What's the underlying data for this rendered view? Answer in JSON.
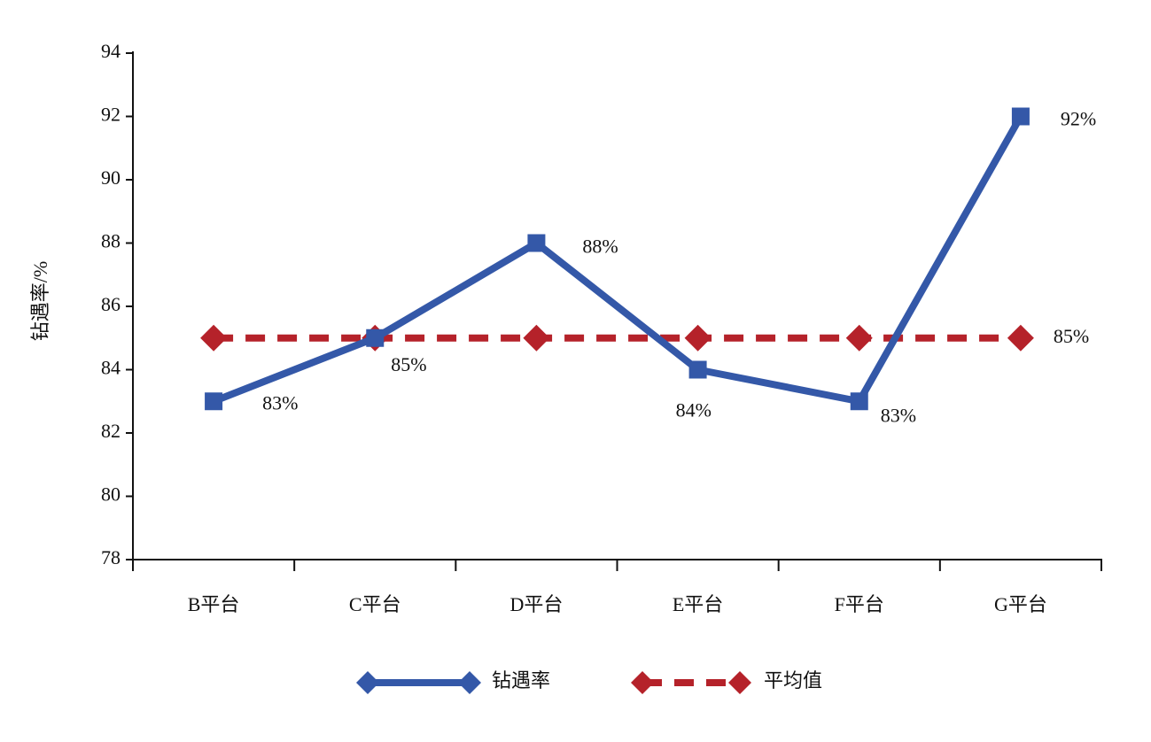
{
  "chart_data": {
    "type": "line",
    "categories": [
      "B平台",
      "C平台",
      "D平台",
      "E平台",
      "F平台",
      "G平台"
    ],
    "series": [
      {
        "name": "钻遇率",
        "color": "#3458a8",
        "values": [
          83,
          85,
          88,
          84,
          83,
          92
        ],
        "value_labels": [
          "83%",
          "85%",
          "88%",
          "84%",
          "83%",
          "92%"
        ]
      },
      {
        "name": "平均值",
        "color": "#b5222a",
        "values": [
          85,
          85,
          85,
          85,
          85,
          85
        ],
        "value_labels": [
          null,
          null,
          null,
          null,
          null,
          "85%"
        ]
      }
    ],
    "y_label": "钻遇率/%",
    "ylim": [
      78,
      94
    ],
    "yticks": [
      78,
      80,
      82,
      84,
      86,
      88,
      90,
      92,
      94
    ],
    "grid": false,
    "legend": "bottom"
  }
}
